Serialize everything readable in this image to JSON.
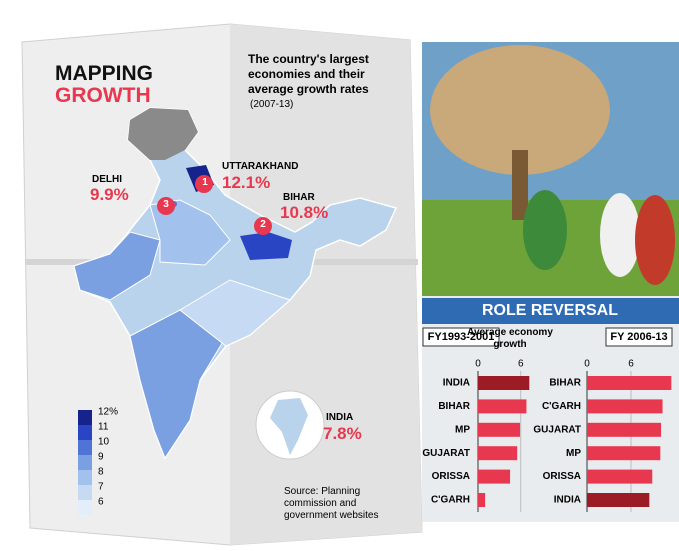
{
  "map": {
    "title": [
      "MAPPING",
      "GROWTH"
    ],
    "subtitle": "The country's largest economies and their average growth rates",
    "period": "(2007-13)",
    "callouts": [
      {
        "marker": "1",
        "state": "UTTARAKHAND",
        "value": "12.1%"
      },
      {
        "marker": "2",
        "state": "BIHAR",
        "value": "10.8%"
      },
      {
        "marker": "3",
        "state": "DELHI",
        "value": "9.9%"
      }
    ],
    "national": {
      "label": "INDIA",
      "value": "7.8%"
    },
    "legend": {
      "labels": [
        "12%",
        "11",
        "10",
        "9",
        "8",
        "7",
        "6"
      ],
      "colors": [
        "#16238c",
        "#2a45c4",
        "#4f74d6",
        "#7aa0e2",
        "#a2c1ec",
        "#c6daf4",
        "#e4eefa"
      ]
    },
    "source": "Source: Planning commission and government websites"
  },
  "panel": {
    "title": "ROLE REVERSAL",
    "axis_title": "Average economy growth"
  },
  "chart_data": [
    {
      "type": "bar",
      "title": "FY1993-2001",
      "categories": [
        "INDIA",
        "BIHAR",
        "MP",
        "GUJARAT",
        "ORISSA",
        "C'GARH"
      ],
      "values": [
        7.2,
        6.8,
        5.9,
        5.5,
        4.5,
        1.0
      ],
      "colors": [
        "#9b1c24",
        "#e8384f",
        "#e8384f",
        "#e8384f",
        "#e8384f",
        "#e8384f"
      ],
      "xlim": [
        0,
        8
      ],
      "xticks": [
        0,
        6
      ]
    },
    {
      "type": "bar",
      "title": "FY 2006-13",
      "categories": [
        "BIHAR",
        "C'GARH",
        "GUJARAT",
        "MP",
        "ORISSA",
        "INDIA"
      ],
      "values": [
        11.5,
        10.3,
        10.1,
        10.0,
        8.9,
        8.5
      ],
      "colors": [
        "#e8384f",
        "#e8384f",
        "#e8384f",
        "#e8384f",
        "#e8384f",
        "#9b1c24"
      ],
      "xlim": [
        0,
        12
      ],
      "xticks": [
        0,
        6
      ]
    }
  ]
}
